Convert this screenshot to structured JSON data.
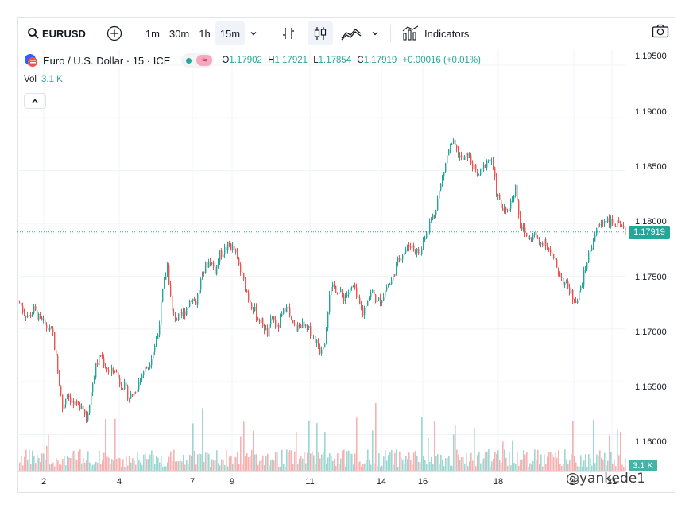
{
  "toolbar": {
    "symbol": "EURUSD",
    "intervals": [
      "1m",
      "30m",
      "1h",
      "15m"
    ],
    "active_interval": "15m",
    "indicators_label": "Indicators"
  },
  "legend": {
    "title": "Euro / U.S. Dollar · 15 · ICE",
    "open_key": "O",
    "open": "1.17902",
    "high_key": "H",
    "high": "1.17921",
    "low_key": "L",
    "low": "1.17854",
    "close_key": "C",
    "close": "1.17919",
    "change": "+0.00016 (+0.01%)"
  },
  "volume": {
    "label": "Vol",
    "value": "3.1 K",
    "badge": "3.1 K"
  },
  "price_axis": {
    "ticks": [
      "1.19500",
      "1.19000",
      "1.18500",
      "1.18000",
      "1.17500",
      "1.17000",
      "1.16500",
      "1.16000"
    ],
    "last_price": "1.17919"
  },
  "time_axis": {
    "ticks": [
      "2",
      "4",
      "7",
      "9",
      "11",
      "14",
      "16",
      "18",
      "20",
      "21"
    ]
  },
  "colors": {
    "up": "#26a69a",
    "down": "#ef5350",
    "accent": "#2962ff"
  },
  "watermark": "@yankede1",
  "chart_data": {
    "type": "candlestick",
    "ylim": [
      1.1565,
      1.1965
    ],
    "x_ticks": [
      "2",
      "4",
      "7",
      "9",
      "11",
      "14",
      "16",
      "18",
      "20",
      "21"
    ],
    "last": 1.17919,
    "close_path": [
      [
        0,
        1.1725
      ],
      [
        6,
        1.1715
      ],
      [
        12,
        1.1712
      ],
      [
        18,
        1.1718
      ],
      [
        24,
        1.171
      ],
      [
        30,
        1.1705
      ],
      [
        36,
        1.17
      ],
      [
        42,
        1.1695
      ],
      [
        48,
        1.166
      ],
      [
        54,
        1.1625
      ],
      [
        60,
        1.164
      ],
      [
        66,
        1.163
      ],
      [
        72,
        1.1625
      ],
      [
        78,
        1.163
      ],
      [
        84,
        1.1615
      ],
      [
        90,
        1.164
      ],
      [
        96,
        1.1665
      ],
      [
        102,
        1.1675
      ],
      [
        108,
        1.1665
      ],
      [
        114,
        1.1658
      ],
      [
        120,
        1.1662
      ],
      [
        126,
        1.165
      ],
      [
        132,
        1.1645
      ],
      [
        138,
        1.1635
      ],
      [
        144,
        1.164
      ],
      [
        150,
        1.165
      ],
      [
        156,
        1.166
      ],
      [
        162,
        1.1665
      ],
      [
        168,
        1.168
      ],
      [
        174,
        1.1695
      ],
      [
        180,
        1.1735
      ],
      [
        186,
        1.176
      ],
      [
        192,
        1.1715
      ],
      [
        198,
        1.171
      ],
      [
        204,
        1.1712
      ],
      [
        210,
        1.172
      ],
      [
        216,
        1.173
      ],
      [
        222,
        1.1725
      ],
      [
        228,
        1.1745
      ],
      [
        234,
        1.176
      ],
      [
        240,
        1.1765
      ],
      [
        246,
        1.1755
      ],
      [
        252,
        1.177
      ],
      [
        258,
        1.1775
      ],
      [
        264,
        1.178
      ],
      [
        270,
        1.1775
      ],
      [
        276,
        1.176
      ],
      [
        282,
        1.1745
      ],
      [
        288,
        1.173
      ],
      [
        294,
        1.172
      ],
      [
        300,
        1.171
      ],
      [
        306,
        1.1705
      ],
      [
        312,
        1.1695
      ],
      [
        318,
        1.1712
      ],
      [
        324,
        1.17
      ],
      [
        330,
        1.1712
      ],
      [
        336,
        1.1725
      ],
      [
        342,
        1.1705
      ],
      [
        348,
        1.17
      ],
      [
        354,
        1.1705
      ],
      [
        360,
        1.17
      ],
      [
        366,
        1.1698
      ],
      [
        372,
        1.169
      ],
      [
        378,
        1.168
      ],
      [
        384,
        1.169
      ],
      [
        390,
        1.1735
      ],
      [
        396,
        1.174
      ],
      [
        402,
        1.1735
      ],
      [
        408,
        1.173
      ],
      [
        414,
        1.1735
      ],
      [
        420,
        1.174
      ],
      [
        426,
        1.1725
      ],
      [
        432,
        1.1715
      ],
      [
        438,
        1.173
      ],
      [
        444,
        1.1735
      ],
      [
        450,
        1.1725
      ],
      [
        456,
        1.173
      ],
      [
        462,
        1.174
      ],
      [
        468,
        1.1745
      ],
      [
        474,
        1.176
      ],
      [
        480,
        1.177
      ],
      [
        486,
        1.1775
      ],
      [
        492,
        1.178
      ],
      [
        498,
        1.1775
      ],
      [
        504,
        1.177
      ],
      [
        510,
        1.179
      ],
      [
        516,
        1.18
      ],
      [
        522,
        1.181
      ],
      [
        528,
        1.183
      ],
      [
        534,
        1.185
      ],
      [
        540,
        1.187
      ],
      [
        546,
        1.1875
      ],
      [
        552,
        1.1865
      ],
      [
        558,
        1.186
      ],
      [
        564,
        1.1865
      ],
      [
        570,
        1.1855
      ],
      [
        576,
        1.1845
      ],
      [
        582,
        1.185
      ],
      [
        588,
        1.186
      ],
      [
        594,
        1.186
      ],
      [
        600,
        1.183
      ],
      [
        606,
        1.1815
      ],
      [
        612,
        1.181
      ],
      [
        618,
        1.182
      ],
      [
        624,
        1.1835
      ],
      [
        630,
        1.18
      ],
      [
        636,
        1.179
      ],
      [
        642,
        1.1785
      ],
      [
        648,
        1.179
      ],
      [
        654,
        1.178
      ],
      [
        660,
        1.1785
      ],
      [
        666,
        1.1775
      ],
      [
        672,
        1.1765
      ],
      [
        678,
        1.1755
      ],
      [
        684,
        1.1745
      ],
      [
        690,
        1.174
      ],
      [
        696,
        1.173
      ],
      [
        702,
        1.1728
      ],
      [
        708,
        1.1745
      ],
      [
        714,
        1.1765
      ],
      [
        720,
        1.178
      ],
      [
        726,
        1.1795
      ],
      [
        732,
        1.18
      ],
      [
        738,
        1.1805
      ],
      [
        744,
        1.18
      ],
      [
        750,
        1.18
      ],
      [
        756,
        1.1795
      ],
      [
        762,
        1.1792
      ]
    ]
  }
}
